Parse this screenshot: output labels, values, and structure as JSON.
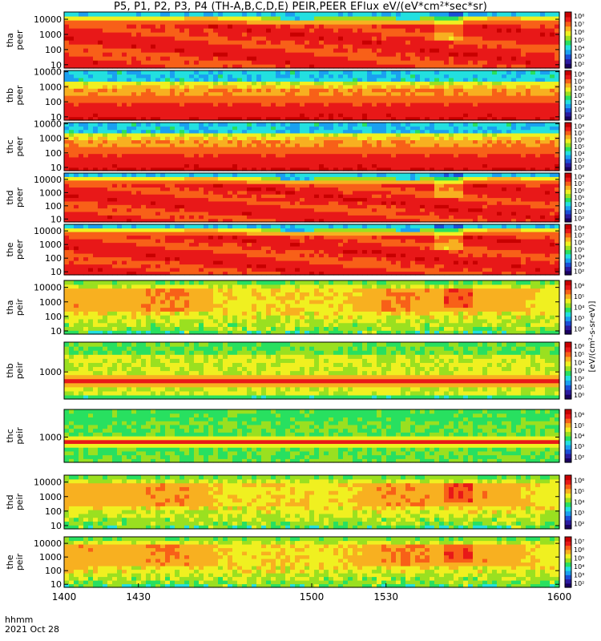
{
  "title": "P5, P1, P2, P3, P4 (TH-A,B,C,D,E) PEIR,PEER EFlux eV/(eV*cm²*sec*sr)",
  "footer": {
    "line1": "hhmm",
    "line2": "2021 Oct 28"
  },
  "colorbar_unit_label": "[eV/(cm²-s-sr-eV)]",
  "chart_data": [
    {
      "type": "heatmap",
      "panel": "tha-peer",
      "ylabel": [
        "tha",
        "peer"
      ],
      "yscale": "log",
      "ylim": [
        6,
        30000
      ],
      "yticks": [
        "10",
        "100",
        "1000",
        "10000"
      ],
      "colorbar": {
        "scale": "log",
        "ticks": [
          "10²",
          "10³",
          "10⁴",
          "10⁵",
          "10⁶",
          "10⁷",
          "10⁸"
        ]
      },
      "profile": "electron-hot"
    },
    {
      "type": "heatmap",
      "panel": "thb-peer",
      "ylabel": [
        "thb",
        "peer"
      ],
      "yscale": "log",
      "ylim": [
        6,
        12000
      ],
      "yticks": [
        "10",
        "100",
        "1000",
        "10000"
      ],
      "colorbar": {
        "scale": "log",
        "ticks": [
          "10²",
          "10³",
          "10⁴",
          "10⁵",
          "10⁶",
          "10⁷",
          "10⁸"
        ]
      },
      "profile": "electron-cold"
    },
    {
      "type": "heatmap",
      "panel": "thc-peer",
      "ylabel": [
        "thc",
        "peer"
      ],
      "yscale": "log",
      "ylim": [
        6,
        12000
      ],
      "yticks": [
        "10",
        "100",
        "1000",
        "10000"
      ],
      "colorbar": {
        "scale": "log",
        "ticks": [
          "10²",
          "10³",
          "10⁴",
          "10⁵",
          "10⁶",
          "10⁷",
          "10⁸"
        ]
      },
      "profile": "electron-cold"
    },
    {
      "type": "heatmap",
      "panel": "thd-peer",
      "ylabel": [
        "thd",
        "peer"
      ],
      "yscale": "log",
      "ylim": [
        6,
        30000
      ],
      "yticks": [
        "10",
        "100",
        "1000",
        "10000"
      ],
      "colorbar": {
        "scale": "log",
        "ticks": [
          "10²",
          "10³",
          "10⁴",
          "10⁵",
          "10⁶",
          "10⁷",
          "10⁸"
        ]
      },
      "profile": "electron-hot"
    },
    {
      "type": "heatmap",
      "panel": "the-peer",
      "ylabel": [
        "the",
        "peer"
      ],
      "yscale": "log",
      "ylim": [
        6,
        30000
      ],
      "yticks": [
        "10",
        "100",
        "1000",
        "10000"
      ],
      "colorbar": {
        "scale": "log",
        "ticks": [
          "10²",
          "10³",
          "10⁴",
          "10⁵",
          "10⁶",
          "10⁷",
          "10⁸"
        ]
      },
      "profile": "electron-hot"
    },
    {
      "type": "heatmap",
      "panel": "tha-peir",
      "ylabel": [
        "tha",
        "peir"
      ],
      "yscale": "log",
      "ylim": [
        6,
        30000
      ],
      "yticks": [
        "10",
        "100",
        "1000",
        "10000"
      ],
      "colorbar": {
        "scale": "log",
        "ticks": [
          "10²",
          "10³",
          "10⁴",
          "10⁵",
          "10⁶"
        ]
      },
      "profile": "ion"
    },
    {
      "type": "heatmap",
      "panel": "thb-peir",
      "ylabel": [
        "thb",
        "peir"
      ],
      "yscale": "log",
      "ylim": [
        150,
        8000
      ],
      "yticks": [
        "1000"
      ],
      "colorbar": {
        "scale": "log",
        "ticks": [
          "10⁰",
          "10¹",
          "10²",
          "10³",
          "10⁴",
          "10⁵",
          "10⁶"
        ]
      },
      "profile": "ion-band"
    },
    {
      "type": "heatmap",
      "panel": "thc-peir",
      "ylabel": [
        "thc",
        "peir"
      ],
      "yscale": "log",
      "ylim": [
        150,
        8000
      ],
      "yticks": [
        "1000"
      ],
      "colorbar": {
        "scale": "log",
        "ticks": [
          "10²",
          "10³",
          "10⁴",
          "10⁵",
          "10⁶"
        ]
      },
      "profile": "ion-band-weak"
    },
    {
      "type": "heatmap",
      "panel": "thd-peir",
      "ylabel": [
        "thd",
        "peir"
      ],
      "yscale": "log",
      "ylim": [
        6,
        30000
      ],
      "yticks": [
        "10",
        "100",
        "1000",
        "10000"
      ],
      "colorbar": {
        "scale": "log",
        "ticks": [
          "10²",
          "10³",
          "10⁴",
          "10⁵",
          "10⁶"
        ]
      },
      "profile": "ion"
    },
    {
      "type": "heatmap",
      "panel": "the-peir",
      "ylabel": [
        "the",
        "peir"
      ],
      "yscale": "log",
      "ylim": [
        6,
        30000
      ],
      "yticks": [
        "10",
        "100",
        "1000",
        "10000"
      ],
      "colorbar": {
        "scale": "log",
        "ticks": [
          "10²",
          "10³",
          "10⁴",
          "10⁵",
          "10⁶",
          "10⁷"
        ]
      },
      "profile": "ion"
    }
  ],
  "x_axis": {
    "label": "hhmm",
    "ticks": [
      "1400",
      "1430",
      "1500",
      "1530",
      "1600"
    ],
    "xlim": [
      1400,
      1600
    ]
  },
  "colormap": [
    "#1a0060",
    "#2a1aa0",
    "#1a4ed8",
    "#1aa0f0",
    "#22e0e0",
    "#28e060",
    "#9ae020",
    "#f0f020",
    "#f8b020",
    "#f86018",
    "#e81818",
    "#c80000"
  ]
}
